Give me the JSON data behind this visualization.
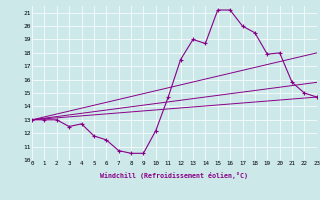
{
  "xlabel": "Windchill (Refroidissement éolien,°C)",
  "bg_color": "#cce8e8",
  "line_color": "#880088",
  "xmin": 0,
  "xmax": 23,
  "ymin": 10,
  "ymax": 21.5,
  "xtick_labels": [
    "0",
    "1",
    "2",
    "3",
    "4",
    "5",
    "6",
    "7",
    "8",
    "9",
    "10",
    "11",
    "12",
    "13",
    "14",
    "15",
    "16",
    "17",
    "18",
    "19",
    "20",
    "21",
    "22",
    "23"
  ],
  "ytick_labels": [
    "10",
    "11",
    "12",
    "13",
    "14",
    "15",
    "16",
    "17",
    "18",
    "19",
    "20",
    "21"
  ],
  "line1_x": [
    0,
    1,
    2,
    3,
    4,
    5,
    6,
    7,
    8,
    9,
    10,
    11,
    12,
    13,
    14,
    15,
    16,
    17,
    18,
    19,
    20,
    21,
    22,
    23
  ],
  "line1_y": [
    13,
    13,
    13,
    12.5,
    12.7,
    11.8,
    11.5,
    10.7,
    10.5,
    10.5,
    12.2,
    14.7,
    17.5,
    19.0,
    18.7,
    21.2,
    21.2,
    20.0,
    19.5,
    17.9,
    18.0,
    15.8,
    15.0,
    14.7
  ],
  "line2_x": [
    0,
    23
  ],
  "line2_y": [
    13,
    14.7
  ],
  "line3_x": [
    0,
    23
  ],
  "line3_y": [
    13,
    15.8
  ],
  "line4_x": [
    0,
    23
  ],
  "line4_y": [
    13,
    18.0
  ]
}
